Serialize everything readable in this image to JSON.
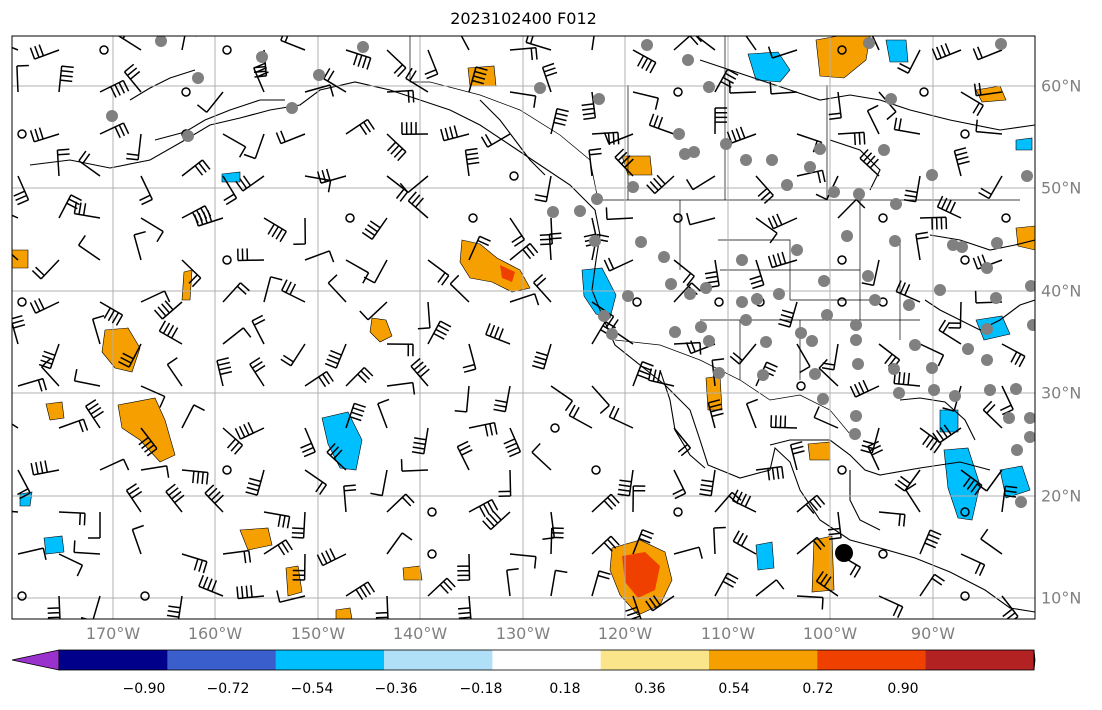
{
  "title": "2023102400 F012",
  "map": {
    "lon_range": [
      -180,
      -80
    ],
    "lat_range": [
      8,
      65
    ],
    "lon_labels": [
      "170°W",
      "160°W",
      "150°W",
      "140°W",
      "130°W",
      "120°W",
      "110°W",
      "100°W",
      "90°W"
    ],
    "lat_labels": [
      "60°N",
      "50°N",
      "40°N",
      "30°N",
      "20°N",
      "10°N"
    ],
    "gridlines": true,
    "marker_color": "#808080"
  },
  "colorbar": {
    "ticks": [
      "−0.90",
      "−0.72",
      "−0.54",
      "−0.36",
      "−0.18",
      "0.18",
      "0.36",
      "0.54",
      "0.72",
      "0.90"
    ],
    "colors": [
      "#9932cc",
      "#00008b",
      "#3a5fcd",
      "#00bfff",
      "#b0e0f8",
      "#ffffff",
      "#fbe58a",
      "#f5a000",
      "#f04000",
      "#b22222",
      "#f888b0"
    ],
    "extend": "both"
  }
}
